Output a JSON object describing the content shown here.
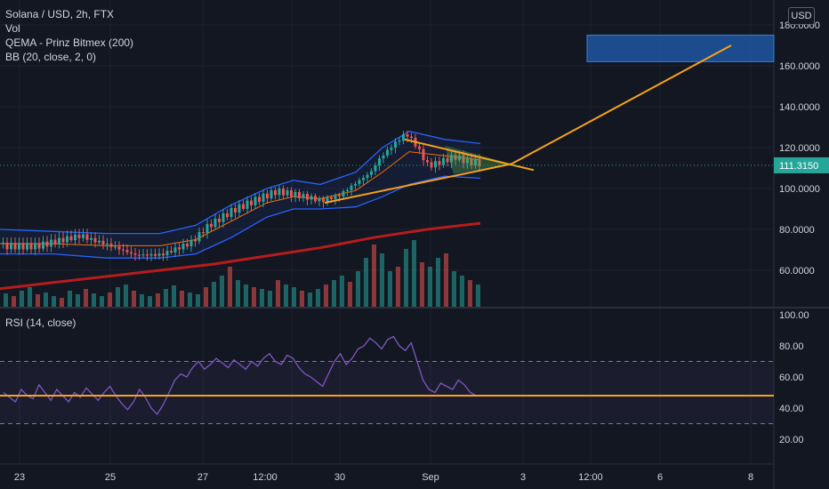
{
  "legend": {
    "symbol": "Solana / USD, 2h, FTX",
    "vol": "Vol",
    "qema": "QEMA - Prinz Bitmex (200)",
    "bb": "BB (20, close, 2, 0)"
  },
  "rsi_label": "RSI (14, close)",
  "currency_button": "USD",
  "price_tag": {
    "value": "111.3150",
    "color": "#26a69a"
  },
  "colors": {
    "background": "#131722",
    "grid": "#1e222d",
    "up": "#26a69a",
    "down": "#ef5350",
    "bollinger": "#2962ff",
    "qema": "#b71c1c",
    "trendline": "#f7a21b",
    "rsi_line": "#7e57c2",
    "target_box": "#1e56a0"
  },
  "chart_data": [
    {
      "type": "candlestick",
      "title": "Solana / USD, 2h, FTX",
      "ylim": [
        43,
        190
      ],
      "y_ticks": [
        "180.0000",
        "160.0000",
        "140.0000",
        "120.0000",
        "100.0000",
        "80.0000",
        "60.0000"
      ],
      "x_ticks": [
        "23",
        "25",
        "27",
        "12:00",
        "30",
        "Sep",
        "3",
        "12:00",
        "6",
        "8"
      ],
      "last_price": 111.315,
      "price_path": [
        [
          0,
          73
        ],
        [
          40,
          72
        ],
        [
          90,
          76
        ],
        [
          100,
          74
        ],
        [
          130,
          70
        ],
        [
          150,
          67
        ],
        [
          180,
          68
        ],
        [
          200,
          72
        ],
        [
          215,
          75
        ],
        [
          230,
          82
        ],
        [
          260,
          90
        ],
        [
          290,
          95
        ],
        [
          310,
          98
        ],
        [
          340,
          95
        ],
        [
          360,
          93
        ],
        [
          380,
          96
        ],
        [
          400,
          103
        ],
        [
          415,
          108
        ],
        [
          425,
          115
        ],
        [
          440,
          122
        ],
        [
          455,
          128
        ],
        [
          465,
          123
        ],
        [
          480,
          112
        ],
        [
          495,
          114
        ],
        [
          510,
          116
        ],
        [
          525,
          113
        ],
        [
          540,
          112
        ]
      ],
      "bollinger_upper": [
        [
          0,
          80
        ],
        [
          60,
          79
        ],
        [
          120,
          78
        ],
        [
          180,
          78
        ],
        [
          220,
          82
        ],
        [
          260,
          92
        ],
        [
          300,
          100
        ],
        [
          330,
          104
        ],
        [
          360,
          102
        ],
        [
          400,
          108
        ],
        [
          430,
          120
        ],
        [
          460,
          128
        ],
        [
          500,
          124
        ],
        [
          540,
          122
        ]
      ],
      "bollinger_middle": [
        [
          0,
          73
        ],
        [
          60,
          73
        ],
        [
          120,
          72
        ],
        [
          180,
          72
        ],
        [
          220,
          75
        ],
        [
          260,
          84
        ],
        [
          300,
          93
        ],
        [
          330,
          96
        ],
        [
          360,
          95
        ],
        [
          400,
          99
        ],
        [
          430,
          108
        ],
        [
          460,
          118
        ],
        [
          500,
          116
        ],
        [
          540,
          114
        ]
      ],
      "bollinger_lower": [
        [
          0,
          68
        ],
        [
          60,
          68
        ],
        [
          120,
          66
        ],
        [
          180,
          66
        ],
        [
          220,
          68
        ],
        [
          260,
          76
        ],
        [
          300,
          86
        ],
        [
          330,
          90
        ],
        [
          360,
          90
        ],
        [
          400,
          91
        ],
        [
          430,
          96
        ],
        [
          460,
          102
        ],
        [
          500,
          106
        ],
        [
          540,
          105
        ]
      ],
      "qema": [
        [
          0,
          51
        ],
        [
          60,
          54
        ],
        [
          120,
          57
        ],
        [
          180,
          60
        ],
        [
          240,
          63
        ],
        [
          300,
          67
        ],
        [
          360,
          71
        ],
        [
          420,
          76
        ],
        [
          480,
          80
        ],
        [
          540,
          83
        ]
      ],
      "trendlines": [
        {
          "name": "upper",
          "points": [
            [
              455,
              124
            ],
            [
              600,
              109
            ]
          ]
        },
        {
          "name": "lower",
          "points": [
            [
              365,
              93
            ],
            [
              575,
              112
            ]
          ]
        },
        {
          "name": "projection",
          "points": [
            [
              575,
              112
            ],
            [
              822,
              170
            ]
          ]
        }
      ],
      "target_zone": {
        "x_range": [
          660,
          870
        ],
        "y_range": [
          162,
          175
        ]
      },
      "volume": [
        15,
        12,
        18,
        22,
        14,
        16,
        12,
        10,
        18,
        14,
        20,
        15,
        12,
        16,
        22,
        25,
        18,
        14,
        12,
        15,
        20,
        24,
        18,
        16,
        14,
        22,
        28,
        35,
        45,
        30,
        25,
        22,
        20,
        18,
        30,
        25,
        22,
        18,
        16,
        20,
        25,
        30,
        35,
        28,
        40,
        55,
        70,
        60,
        40,
        45,
        65,
        75,
        50,
        45,
        55,
        60,
        40,
        35,
        30,
        25
      ]
    },
    {
      "type": "line",
      "title": "RSI (14, close)",
      "ylim": [
        10,
        100
      ],
      "y_ticks": [
        "100.00",
        "80.00",
        "60.00",
        "40.00",
        "20.00"
      ],
      "bands": [
        30,
        70
      ],
      "level_line": 48,
      "values": [
        50,
        47,
        44,
        52,
        48,
        46,
        55,
        50,
        45,
        52,
        48,
        44,
        50,
        47,
        53,
        49,
        45,
        50,
        54,
        48,
        43,
        39,
        44,
        52,
        47,
        40,
        36,
        42,
        50,
        58,
        62,
        60,
        66,
        70,
        65,
        68,
        72,
        69,
        66,
        71,
        68,
        65,
        70,
        67,
        72,
        75,
        70,
        68,
        74,
        72,
        66,
        62,
        60,
        57,
        54,
        62,
        70,
        75,
        68,
        72,
        78,
        80,
        85,
        82,
        78,
        84,
        86,
        80,
        77,
        82,
        70,
        58,
        52,
        50,
        56,
        54,
        52,
        58,
        55,
        50,
        48,
        48
      ]
    }
  ]
}
